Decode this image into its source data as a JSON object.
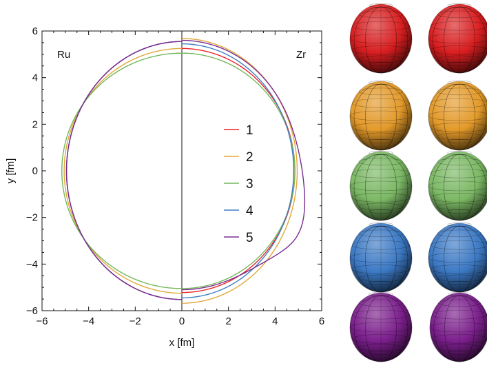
{
  "chart_data": {
    "type": "line",
    "title": "",
    "xlabel": "x [fm]",
    "ylabel": "y [fm]",
    "xlim": [
      -6,
      6
    ],
    "ylim": [
      -6,
      6
    ],
    "xticks": [
      -6,
      -4,
      -2,
      0,
      2,
      4,
      6
    ],
    "yticks": [
      -6,
      -4,
      -2,
      0,
      2,
      4,
      6
    ],
    "grid": false,
    "legend_position": "center-right",
    "panel_labels": {
      "left": "Ru",
      "right": "Zr"
    },
    "series": [
      {
        "name": "1",
        "color": "#e8242a",
        "ru_extent": {
          "x": 4.95,
          "y_top": 5.55,
          "y_bottom": 5.52
        },
        "zr_extent": {
          "x": 4.85,
          "y_top": 5.25,
          "y_bottom": 5.22
        }
      },
      {
        "name": "2",
        "color": "#e0a839",
        "ru_extent": {
          "x": 5.05,
          "y_top": 5.25,
          "y_bottom": 5.25
        },
        "zr_extent": {
          "x": 4.95,
          "y_top": 5.68,
          "y_bottom": 5.68
        }
      },
      {
        "name": "3",
        "color": "#74b75a",
        "ru_extent": {
          "x": 5.15,
          "y_top": 5.05,
          "y_bottom": 5.05
        },
        "zr_extent": {
          "x": 4.85,
          "y_top": 5.05,
          "y_bottom": 5.05
        }
      },
      {
        "name": "4",
        "color": "#3f7dc2",
        "ru_extent": {
          "x": 4.95,
          "y_top": 5.55,
          "y_bottom": 5.52
        },
        "zr_extent": {
          "x": 4.8,
          "y_top": 5.45,
          "y_bottom": 5.45
        }
      },
      {
        "name": "5",
        "color": "#7a2c90",
        "ru_extent": {
          "x": 4.95,
          "y_top": 5.55,
          "y_bottom": 5.52
        },
        "zr_extent": {
          "x": 5.0,
          "y_top": 5.6,
          "y_bottom": 5.1
        }
      }
    ]
  },
  "spheres": [
    {
      "color": "#d81e20"
    },
    {
      "color": "#e39a2a"
    },
    {
      "color": "#7bb864"
    },
    {
      "color": "#3c79c4"
    },
    {
      "color": "#7b1f8c"
    }
  ]
}
